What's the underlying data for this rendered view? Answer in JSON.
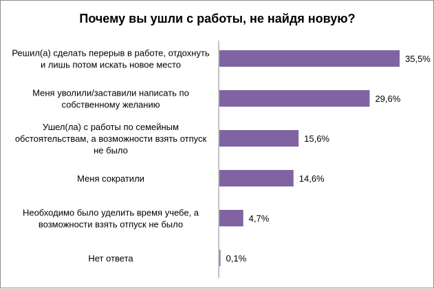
{
  "chart_data": {
    "type": "bar",
    "orientation": "horizontal",
    "title": "Почему вы ушли с работы, не найдя новую?",
    "categories": [
      [
        "Решил(а) сделать перерыв в работе, отдохнуть",
        "и лишь потом искать новое место"
      ],
      [
        "Меня уволили/заставили написать по",
        "собственному желанию"
      ],
      [
        "Ушел(ла) с работы по семейным",
        "обстоятельствам, а возможности взять отпуск",
        "не было"
      ],
      [
        "Меня сократили"
      ],
      [
        "Необходимо было уделить время учебе, а",
        "возможности взять отпуск не было"
      ],
      [
        "Нет ответа"
      ]
    ],
    "values": [
      35.5,
      29.6,
      15.6,
      14.6,
      4.7,
      0.1
    ],
    "value_labels": [
      "35,5%",
      "29,6%",
      "15,6%",
      "14,6%",
      "4,7%",
      "0,1%"
    ],
    "xlim": [
      0,
      40
    ],
    "xlabel": "",
    "ylabel": "",
    "legend": "none",
    "grid": false,
    "bar_color": "#8064a2"
  }
}
